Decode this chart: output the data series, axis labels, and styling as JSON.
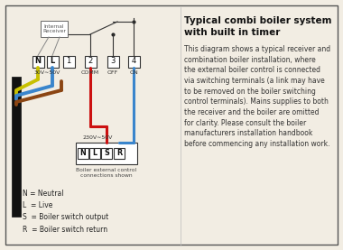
{
  "bg_color": "#f2ede3",
  "border_color": "#444444",
  "title": "Typical combi boiler system\nwith built in timer",
  "title_fontsize": 7.5,
  "body_text": "This diagram shows a typical receiver and\ncombination boiler installation, where\nthe external boiler control is connected\nvia switching terminals (a link may have\nto be removed on the boiler switching\ncontrol terminals). Mains supplies to both\nthe receiver and the boiler are omitted\nfor clarity. Please consult the boiler\nmanufacturers installation handbook\nbefore commencing any installation work.",
  "body_fontsize": 5.5,
  "legend_text": "N = Neutral\nL  = Live\nS  = Boiler switch output\nR  = Boiler switch return",
  "legend_fontsize": 5.5,
  "terminal_labels_top": [
    "N",
    "L",
    "1",
    "2",
    "3",
    "4"
  ],
  "boiler_labels": [
    "N",
    "L",
    "S",
    "R"
  ],
  "voltage_top": "30V∼50V",
  "voltage_bot": "230V∼50V",
  "internal_label": "Internal\nReceiver",
  "boiler_box_label": "Boiler external control\nconnections shown",
  "wire_yellow": "#c8c000",
  "wire_blue": "#3a85cc",
  "wire_brown": "#8b4513",
  "wire_red": "#cc1111",
  "comm_label": "COMM",
  "off_label": "OFF",
  "on_label": "ON"
}
